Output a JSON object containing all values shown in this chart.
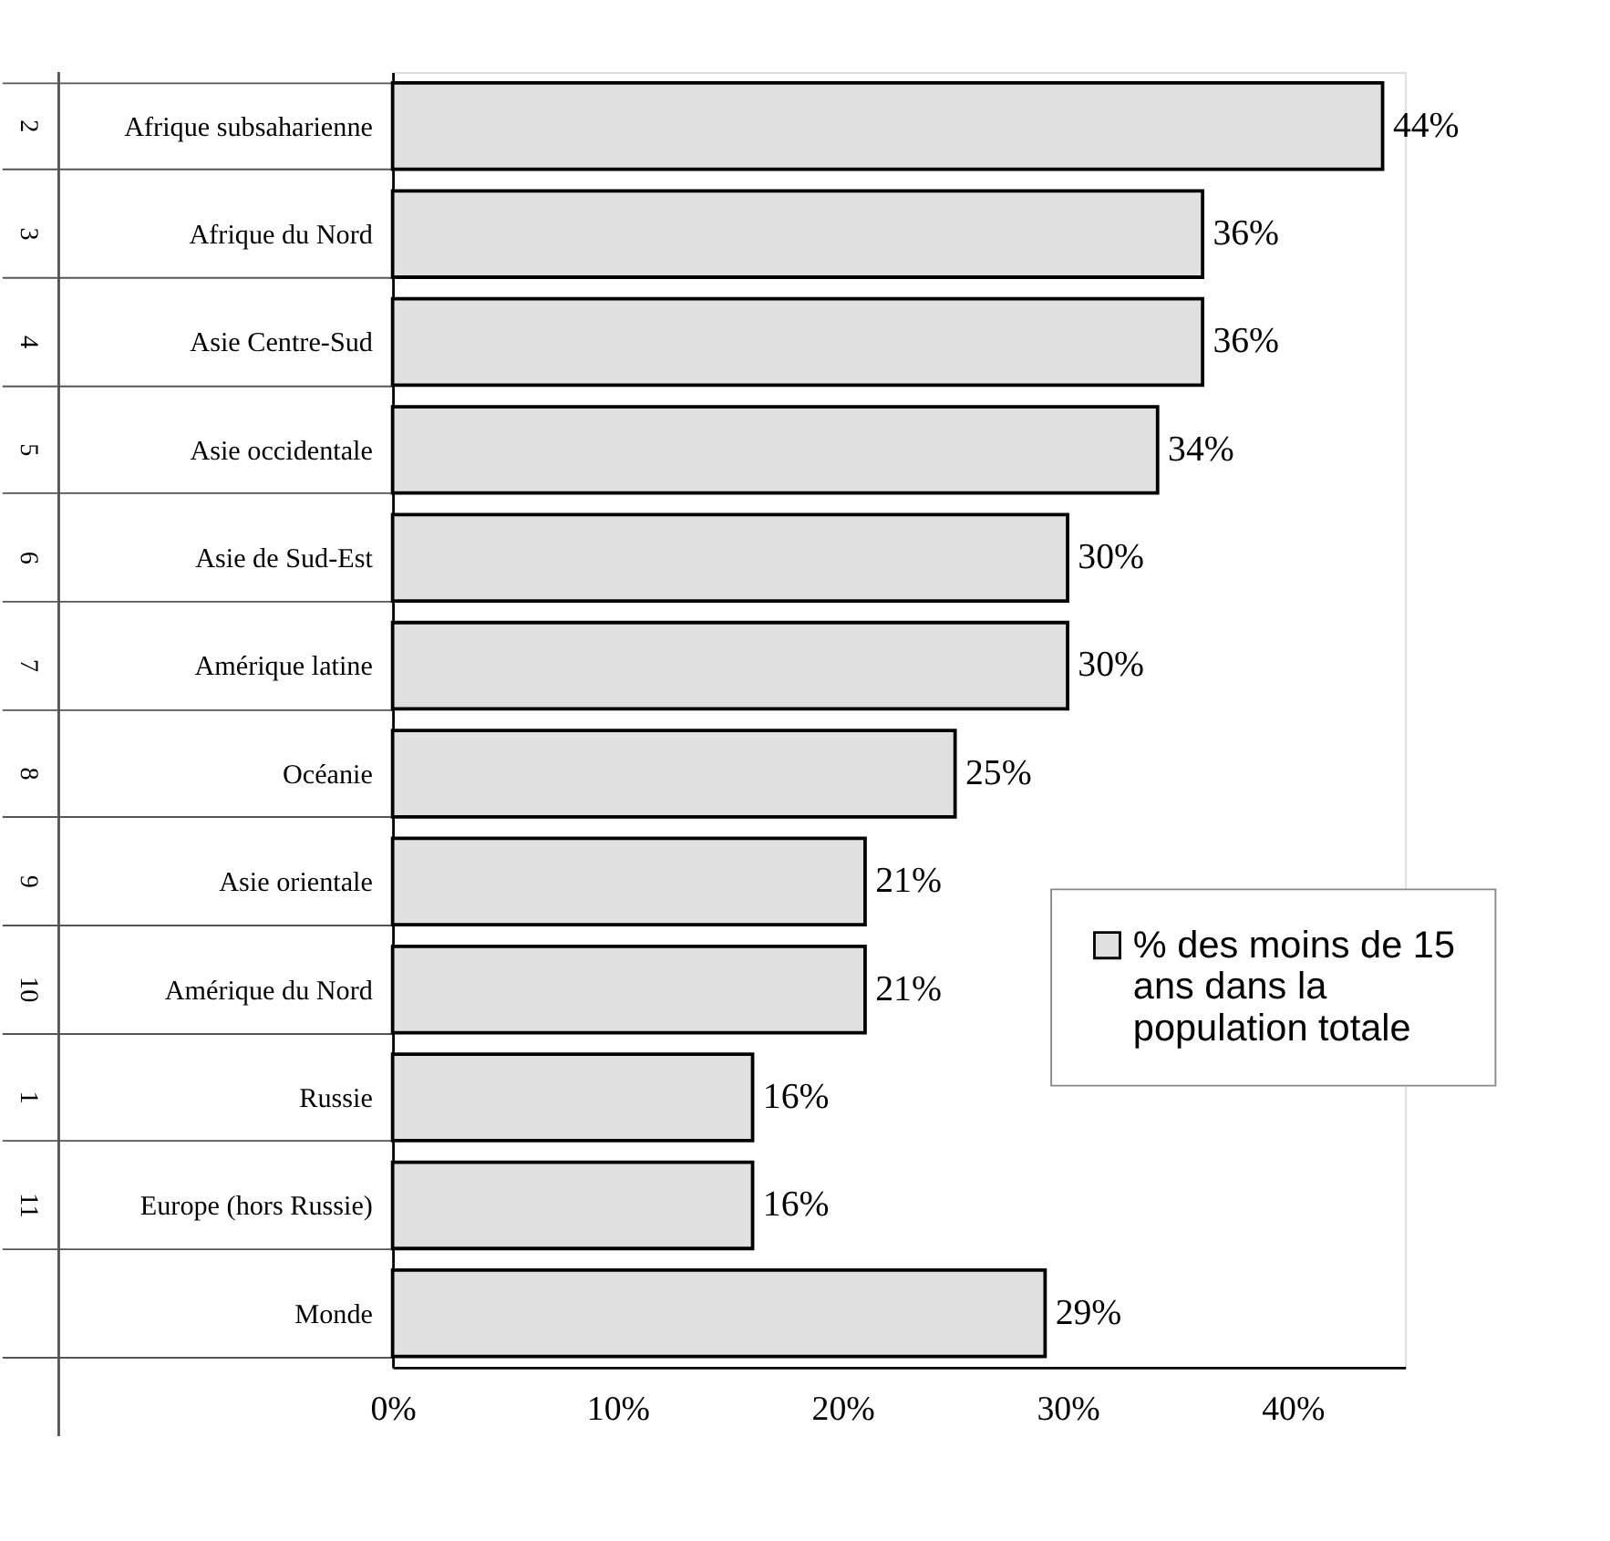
{
  "chart_data": {
    "type": "bar",
    "orientation": "horizontal",
    "categories": [
      "Afrique subsaharienne",
      "Afrique du Nord",
      "Asie Centre-Sud",
      "Asie occidentale",
      "Asie de Sud-Est",
      "Amérique latine",
      "Océanie",
      "Asie orientale",
      "Amérique du Nord",
      "Russie",
      "Europe (hors Russie)",
      "Monde"
    ],
    "series": [
      {
        "name": "% des moins de 15 ans dans la population totale",
        "color": "#e0e0e0",
        "values": [
          44,
          36,
          36,
          34,
          30,
          30,
          25,
          21,
          21,
          16,
          16,
          29
        ],
        "value_labels": [
          "44%",
          "36%",
          "36%",
          "34%",
          "30%",
          "30%",
          "25%",
          "21%",
          "21%",
          "16%",
          "16%",
          "29%"
        ]
      }
    ],
    "xlim": [
      0,
      45
    ],
    "xticks": [
      {
        "value": 0,
        "label": "0%"
      },
      {
        "value": 10,
        "label": "10%"
      },
      {
        "value": 20,
        "label": "20%"
      },
      {
        "value": 30,
        "label": "30%"
      },
      {
        "value": 40,
        "label": "40%"
      }
    ],
    "annotations": [
      "2",
      "3",
      "4",
      "5",
      "6",
      "7",
      "8",
      "9",
      "10",
      "1",
      "11"
    ],
    "legend": "bottom right",
    "grid": false
  }
}
